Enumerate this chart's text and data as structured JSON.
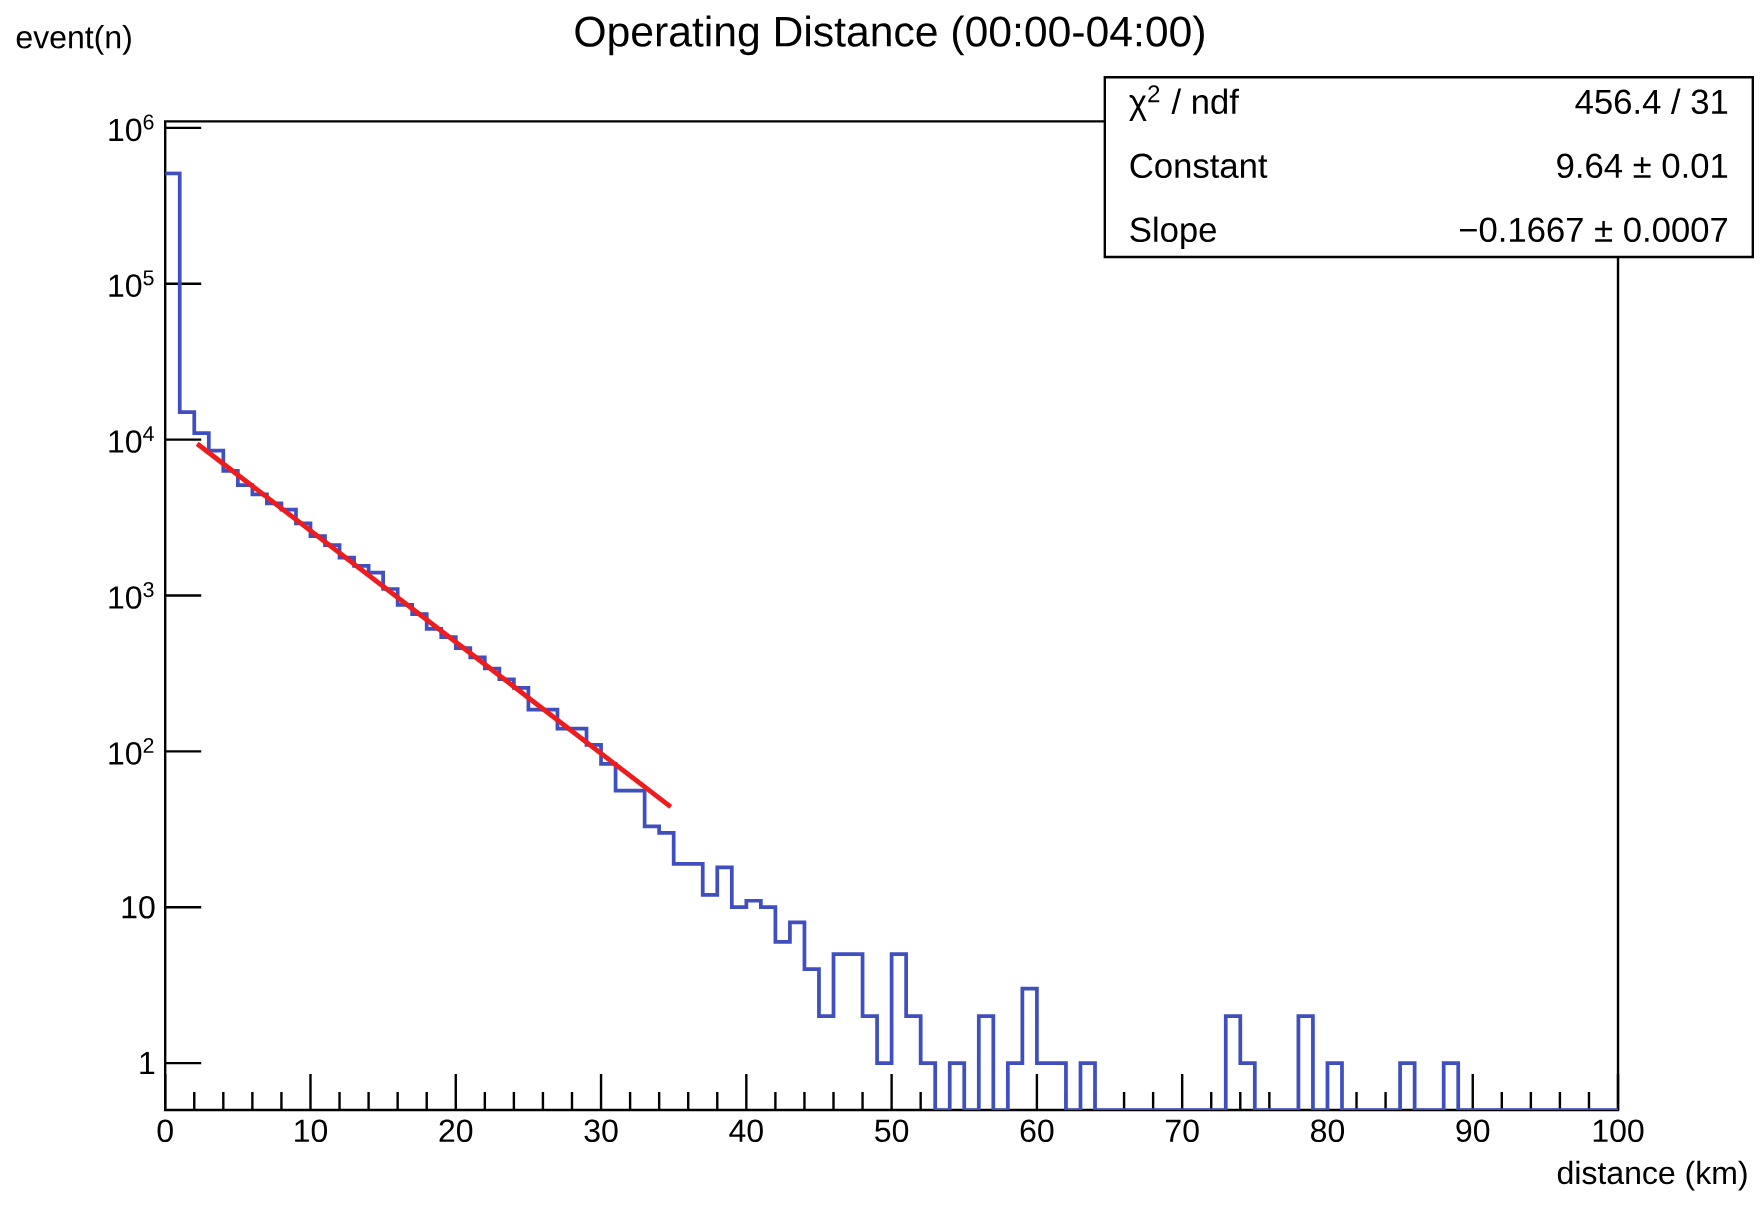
{
  "chart_data": {
    "type": "histogram",
    "title": "Operating Distance (00:00-04:00)",
    "xlabel": "distance (km)",
    "ylabel": "event(n)",
    "series": [
      {
        "type": "histogram",
        "color": "#3f4fbf",
        "bins": [
          0,
          1,
          2,
          3,
          4,
          5,
          6,
          7,
          8,
          9,
          10,
          11,
          12,
          13,
          14,
          15,
          16,
          17,
          18,
          19,
          20,
          21,
          22,
          23,
          24,
          25,
          26,
          27,
          28,
          29,
          30,
          31,
          32,
          33,
          34,
          35,
          36,
          37,
          38,
          39,
          40,
          41,
          42,
          43,
          44,
          45,
          46,
          47,
          48,
          49,
          50,
          51,
          52,
          53,
          54,
          55,
          56,
          57,
          58,
          59,
          60,
          61,
          62,
          63,
          64,
          65,
          66,
          67,
          68,
          69,
          70,
          71,
          72,
          73,
          74,
          75,
          76,
          77,
          78,
          79,
          80,
          81,
          82,
          83,
          84,
          85,
          86,
          87,
          88,
          89,
          90,
          91,
          92,
          93,
          94,
          95,
          96,
          97,
          98,
          99,
          100
        ],
        "values": [
          510000,
          15000,
          11000,
          8500,
          6300,
          5100,
          4450,
          3900,
          3550,
          2900,
          2400,
          2100,
          1750,
          1550,
          1400,
          1100,
          870,
          760,
          610,
          540,
          460,
          400,
          340,
          290,
          255,
          185,
          185,
          140,
          140,
          110,
          83,
          56,
          56,
          33,
          30,
          19,
          19,
          12,
          18,
          10,
          11,
          10,
          6,
          8,
          4,
          2,
          5,
          5,
          2,
          1,
          5,
          2,
          1,
          null,
          1,
          null,
          2,
          null,
          1,
          3,
          1,
          1,
          null,
          1,
          null,
          null,
          null,
          null,
          null,
          null,
          null,
          null,
          null,
          2,
          1,
          null,
          null,
          null,
          2,
          null,
          1,
          null,
          null,
          null,
          null,
          1,
          null,
          null,
          1,
          null,
          null,
          null,
          null,
          null,
          null,
          null,
          null,
          null,
          null,
          null
        ]
      },
      {
        "type": "line",
        "color": "#ee1c1c",
        "x": [
          2.2,
          34.8
        ],
        "values": [
          9400,
          44
        ]
      }
    ],
    "log": "y",
    "xlim": [
      0,
      100
    ],
    "ylim": [
      0.5,
      1100000
    ],
    "xticks": [
      0,
      10,
      20,
      30,
      40,
      50,
      60,
      70,
      80,
      90,
      100
    ],
    "yticks": [
      1,
      10,
      {
        "value": 100,
        "label": "10$^{2}$"
      },
      {
        "value": 1000,
        "label": "10$^{3}$"
      },
      {
        "value": 10000,
        "label": "10$^{4}$"
      },
      {
        "value": 100000,
        "label": "10$^{5}$"
      },
      {
        "value": 1000000,
        "label": "10$^{6}$"
      }
    ],
    "annotations": [
      "χ$^{2}$ / ndf",
      "456.4 / 31",
      "Constant",
      "9.64 ± 0.01",
      "Slope",
      "−0.1667 ± 0.0007"
    ]
  }
}
